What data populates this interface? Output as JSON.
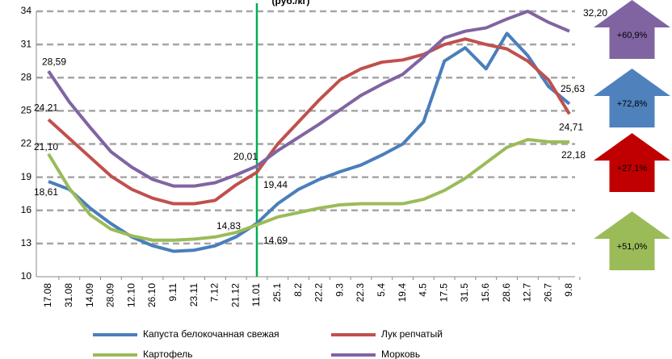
{
  "chart_data": {
    "type": "line",
    "title": "(руб./кг)",
    "categories": [
      "17.08",
      "31.08",
      "14.09",
      "28.09",
      "12.10",
      "26.10",
      "9.11",
      "23.11",
      "7.12",
      "21.12",
      "11.01",
      "25.1",
      "8.2",
      "22.2",
      "9.3",
      "22.3",
      "5.4",
      "19.4",
      "4.5",
      "17.5",
      "31.5",
      "15.6",
      "28.6",
      "12.7",
      "26.7",
      "9.8"
    ],
    "series": [
      {
        "name": "Капуста белокочанная свежая",
        "color": "#4a7ebb",
        "values": [
          18.61,
          17.9,
          16.2,
          14.8,
          13.6,
          12.8,
          12.3,
          12.4,
          12.8,
          13.6,
          14.83,
          16.6,
          17.9,
          18.8,
          19.5,
          20.1,
          21.0,
          22.0,
          24.0,
          29.5,
          30.7,
          28.8,
          32.0,
          30.0,
          27.2,
          25.63
        ],
        "value_labels": [
          "18,61",
          null,
          null,
          null,
          null,
          null,
          null,
          null,
          null,
          null,
          "14,83",
          null,
          null,
          null,
          null,
          null,
          null,
          null,
          null,
          null,
          null,
          null,
          null,
          null,
          null,
          "25,63"
        ]
      },
      {
        "name": "Лук репчатый",
        "color": "#c0504d",
        "values": [
          24.21,
          22.5,
          20.8,
          19.1,
          17.9,
          17.1,
          16.6,
          16.6,
          16.9,
          18.3,
          19.44,
          22.0,
          24.0,
          26.0,
          27.8,
          28.8,
          29.4,
          29.6,
          30.1,
          31.0,
          31.5,
          31.0,
          30.6,
          29.5,
          27.8,
          24.71
        ],
        "value_labels": [
          "24,21",
          null,
          null,
          null,
          null,
          null,
          null,
          null,
          null,
          null,
          "19,44",
          null,
          null,
          null,
          null,
          null,
          null,
          null,
          null,
          null,
          null,
          null,
          null,
          null,
          null,
          "24,71"
        ]
      },
      {
        "name": "Картофель",
        "color": "#9bbb59",
        "values": [
          21.1,
          18.0,
          15.6,
          14.3,
          13.7,
          13.3,
          13.3,
          13.4,
          13.6,
          14.0,
          14.69,
          15.4,
          15.8,
          16.2,
          16.5,
          16.6,
          16.6,
          16.6,
          17.0,
          17.8,
          18.9,
          20.3,
          21.7,
          22.4,
          22.2,
          22.18
        ],
        "value_labels": [
          "21,10",
          null,
          null,
          null,
          null,
          null,
          null,
          null,
          null,
          null,
          "14,69",
          null,
          null,
          null,
          null,
          null,
          null,
          null,
          null,
          null,
          null,
          null,
          null,
          null,
          null,
          "22,18"
        ]
      },
      {
        "name": "Морковь",
        "color": "#8064a2",
        "values": [
          28.59,
          25.8,
          23.5,
          21.3,
          19.9,
          18.8,
          18.2,
          18.2,
          18.5,
          19.2,
          20.01,
          21.4,
          22.6,
          23.8,
          25.1,
          26.4,
          27.4,
          28.3,
          29.9,
          31.6,
          32.2,
          32.5,
          33.3,
          34.0,
          33.0,
          32.2
        ],
        "value_labels": [
          "28,59",
          null,
          null,
          null,
          null,
          null,
          null,
          null,
          null,
          null,
          "20,01",
          null,
          null,
          null,
          null,
          null,
          null,
          null,
          null,
          null,
          null,
          null,
          null,
          null,
          null,
          "32,20"
        ]
      }
    ],
    "ylim": [
      10,
      34
    ],
    "yticks": [
      10,
      13,
      16,
      19,
      22,
      25,
      28,
      31,
      34
    ],
    "grid": true,
    "vline": {
      "category": "11.01",
      "color": "#00b050"
    },
    "annotations": [
      {
        "label": "+60,9%",
        "color": "#8064a2"
      },
      {
        "label": "+72,8%",
        "color": "#4f81bd"
      },
      {
        "label": "+27,1%",
        "color": "#c00000"
      },
      {
        "label": "+51,0%",
        "color": "#9bbb59"
      }
    ]
  }
}
